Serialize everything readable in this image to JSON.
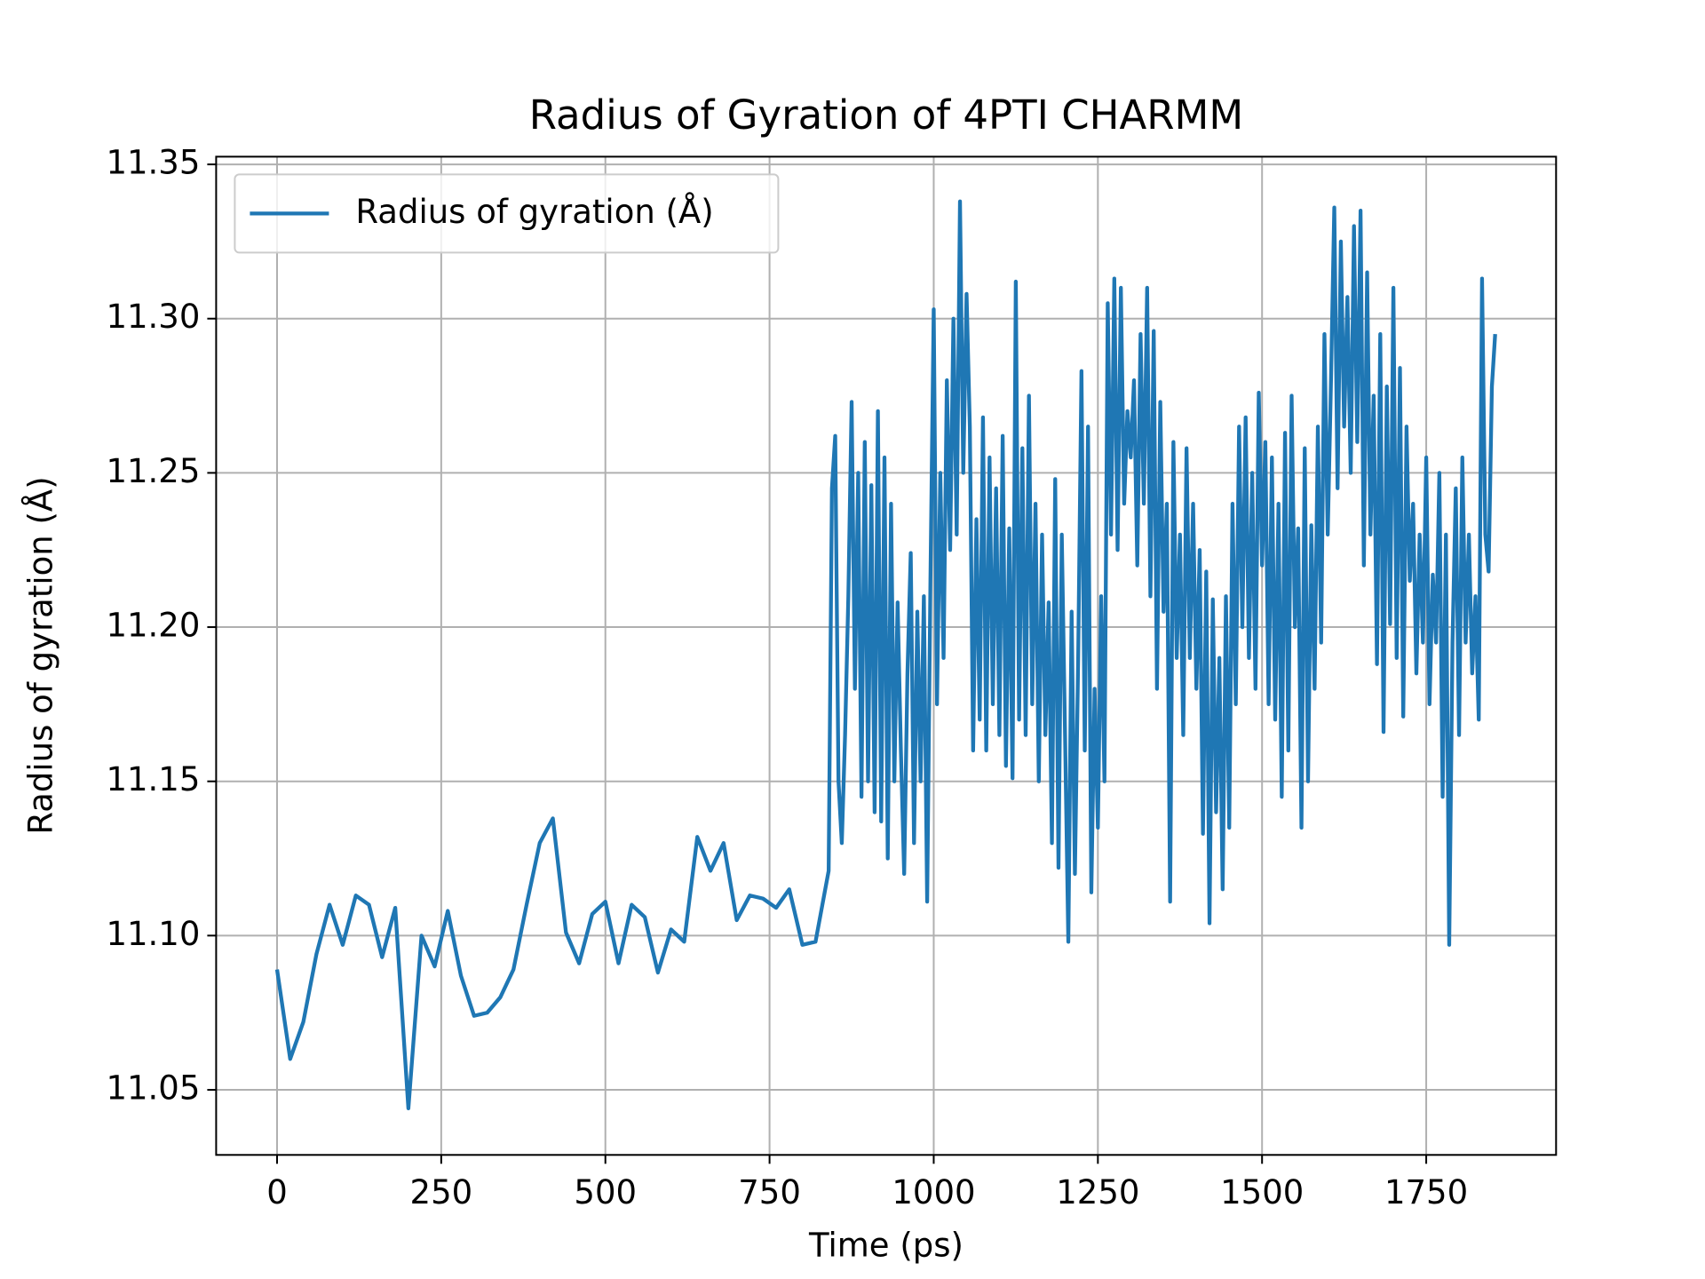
{
  "chart_data": {
    "type": "line",
    "title": "Radius of Gyration of 4PTI CHARMM",
    "x_label": "Time (ps)",
    "y_label": "Radius of gyration (Å)",
    "x": [
      0,
      20,
      40,
      60,
      80,
      100,
      120,
      140,
      160,
      180,
      200,
      220,
      240,
      260,
      280,
      300,
      320,
      340,
      360,
      380,
      400,
      420,
      440,
      460,
      480,
      500,
      520,
      540,
      560,
      580,
      600,
      620,
      640,
      660,
      680,
      700,
      720,
      740,
      760,
      780,
      800,
      820,
      840,
      845,
      850,
      855,
      860,
      865,
      870,
      875,
      880,
      885,
      890,
      895,
      900,
      905,
      910,
      915,
      920,
      925,
      930,
      935,
      940,
      945,
      950,
      955,
      960,
      965,
      970,
      975,
      980,
      985,
      990,
      995,
      1000,
      1005,
      1010,
      1015,
      1020,
      1025,
      1030,
      1035,
      1040,
      1045,
      1050,
      1055,
      1060,
      1065,
      1070,
      1075,
      1080,
      1085,
      1090,
      1095,
      1100,
      1105,
      1110,
      1115,
      1120,
      1125,
      1130,
      1135,
      1140,
      1145,
      1150,
      1155,
      1160,
      1165,
      1170,
      1175,
      1180,
      1185,
      1190,
      1195,
      1200,
      1205,
      1210,
      1215,
      1220,
      1225,
      1230,
      1235,
      1240,
      1245,
      1250,
      1255,
      1260,
      1265,
      1270,
      1275,
      1280,
      1285,
      1290,
      1295,
      1300,
      1305,
      1310,
      1315,
      1320,
      1325,
      1330,
      1335,
      1340,
      1345,
      1350,
      1355,
      1360,
      1365,
      1370,
      1375,
      1380,
      1385,
      1390,
      1395,
      1400,
      1405,
      1410,
      1415,
      1420,
      1425,
      1430,
      1435,
      1440,
      1445,
      1450,
      1455,
      1460,
      1465,
      1470,
      1475,
      1480,
      1485,
      1490,
      1495,
      1500,
      1505,
      1510,
      1515,
      1520,
      1525,
      1530,
      1535,
      1540,
      1545,
      1550,
      1555,
      1560,
      1565,
      1570,
      1575,
      1580,
      1585,
      1590,
      1595,
      1600,
      1605,
      1610,
      1615,
      1620,
      1625,
      1630,
      1635,
      1640,
      1645,
      1650,
      1655,
      1660,
      1665,
      1670,
      1675,
      1680,
      1685,
      1690,
      1695,
      1700,
      1705,
      1710,
      1715,
      1720,
      1725,
      1730,
      1735,
      1740,
      1745,
      1750,
      1755,
      1760,
      1765,
      1770,
      1775,
      1780,
      1785,
      1790,
      1795,
      1800,
      1805,
      1810,
      1815,
      1820,
      1825,
      1830,
      1835,
      1840,
      1845,
      1850,
      1855
    ],
    "series": [
      {
        "name": "Radius of gyration (Å)",
        "color": "#1f77b4",
        "values": [
          11.089,
          11.06,
          11.072,
          11.094,
          11.11,
          11.097,
          11.113,
          11.11,
          11.093,
          11.109,
          11.044,
          11.1,
          11.09,
          11.108,
          11.087,
          11.074,
          11.075,
          11.08,
          11.089,
          11.11,
          11.13,
          11.138,
          11.101,
          11.091,
          11.107,
          11.111,
          11.091,
          11.11,
          11.106,
          11.088,
          11.102,
          11.098,
          11.132,
          11.121,
          11.13,
          11.105,
          11.113,
          11.112,
          11.109,
          11.115,
          11.097,
          11.098,
          11.121,
          11.245,
          11.262,
          11.15,
          11.13,
          11.165,
          11.21,
          11.273,
          11.18,
          11.25,
          11.145,
          11.26,
          11.15,
          11.246,
          11.14,
          11.27,
          11.137,
          11.255,
          11.125,
          11.24,
          11.15,
          11.208,
          11.16,
          11.12,
          11.185,
          11.224,
          11.13,
          11.205,
          11.15,
          11.21,
          11.111,
          11.215,
          11.303,
          11.175,
          11.25,
          11.19,
          11.28,
          11.225,
          11.3,
          11.23,
          11.338,
          11.25,
          11.308,
          11.265,
          11.16,
          11.235,
          11.17,
          11.268,
          11.16,
          11.255,
          11.175,
          11.245,
          11.165,
          11.262,
          11.155,
          11.232,
          11.151,
          11.312,
          11.17,
          11.258,
          11.165,
          11.275,
          11.175,
          11.24,
          11.15,
          11.23,
          11.165,
          11.208,
          11.13,
          11.248,
          11.122,
          11.23,
          11.165,
          11.098,
          11.205,
          11.12,
          11.19,
          11.283,
          11.16,
          11.265,
          11.114,
          11.18,
          11.135,
          11.21,
          11.15,
          11.305,
          11.23,
          11.313,
          11.225,
          11.31,
          11.24,
          11.27,
          11.255,
          11.28,
          11.22,
          11.295,
          11.24,
          11.31,
          11.21,
          11.296,
          11.18,
          11.273,
          11.205,
          11.24,
          11.111,
          11.26,
          11.19,
          11.23,
          11.165,
          11.258,
          11.19,
          11.24,
          11.18,
          11.225,
          11.133,
          11.218,
          11.104,
          11.209,
          11.14,
          11.19,
          11.115,
          11.21,
          11.135,
          11.24,
          11.175,
          11.265,
          11.2,
          11.268,
          11.19,
          11.25,
          11.18,
          11.276,
          11.22,
          11.26,
          11.175,
          11.255,
          11.17,
          11.24,
          11.145,
          11.263,
          11.16,
          11.275,
          11.2,
          11.232,
          11.135,
          11.258,
          11.15,
          11.233,
          11.18,
          11.265,
          11.195,
          11.295,
          11.23,
          11.28,
          11.336,
          11.245,
          11.325,
          11.265,
          11.307,
          11.25,
          11.33,
          11.26,
          11.335,
          11.22,
          11.315,
          11.23,
          11.275,
          11.188,
          11.295,
          11.166,
          11.278,
          11.201,
          11.31,
          11.19,
          11.284,
          11.171,
          11.265,
          11.215,
          11.24,
          11.185,
          11.23,
          11.195,
          11.255,
          11.175,
          11.217,
          11.195,
          11.25,
          11.145,
          11.23,
          11.097,
          11.195,
          11.245,
          11.165,
          11.255,
          11.195,
          11.23,
          11.185,
          11.21,
          11.17,
          11.313,
          11.23,
          11.218,
          11.278,
          11.295
        ]
      }
    ],
    "xlim": [
      -92.75,
      1947.75
    ],
    "xticks": [
      0,
      250,
      500,
      750,
      1000,
      1250,
      1500,
      1750
    ],
    "ylim": [
      11.0289,
      11.3525
    ],
    "yticks": [
      11.05,
      {
        "value": 11.1,
        "label": "11.10"
      },
      11.15,
      {
        "value": 11.2,
        "label": "11.20"
      },
      11.25,
      {
        "value": 11.3,
        "label": "11.30"
      },
      11.35
    ],
    "grid": true,
    "legend": "upper left"
  }
}
